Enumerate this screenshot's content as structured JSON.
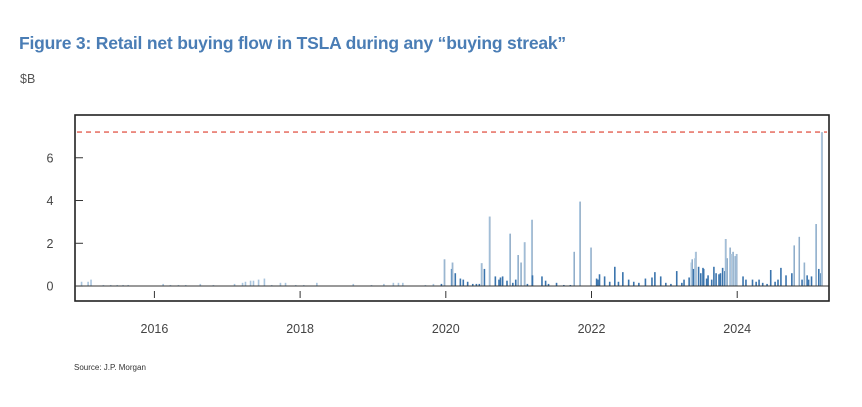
{
  "title": "Figure 3: Retail net buying flow in TSLA during any “buying streak”",
  "source": "Source: J.P. Morgan",
  "colors": {
    "title": "#4a7db5",
    "bar_light": "#a9c5de",
    "bar_dark": "#3a74ad",
    "reference_line": "#e8776b",
    "frame": "#222222"
  },
  "chart_data": {
    "type": "bar",
    "title": "Figure 3: Retail net buying flow in TSLA during any “buying streak”",
    "xlabel": "",
    "ylabel": "$B",
    "x_units": "year (decimal)",
    "xlim": [
      2014.91,
      2025.26
    ],
    "ylim": [
      -0.7,
      8.0
    ],
    "yticks": [
      0,
      2,
      4,
      6
    ],
    "ytick_labels": [
      "0",
      "2",
      "4",
      "6"
    ],
    "xticks": [
      2016,
      2018,
      2020,
      2022,
      2024
    ],
    "xtick_labels": [
      "2016",
      "2018",
      "2020",
      "2022",
      "2024"
    ],
    "grid": false,
    "legend": "none",
    "reference_line": {
      "y": 7.2,
      "style": "dashed",
      "label": ""
    },
    "x": [
      2015.0,
      2015.09,
      2015.13,
      2015.3,
      2015.4,
      2015.49,
      2015.57,
      2015.64,
      2016.12,
      2016.22,
      2016.33,
      2016.43,
      2016.63,
      2016.81,
      2017.1,
      2017.21,
      2017.25,
      2017.32,
      2017.36,
      2017.43,
      2017.51,
      2017.61,
      2017.73,
      2017.8,
      2017.94,
      2018.05,
      2018.23,
      2018.73,
      2018.98,
      2019.15,
      2019.28,
      2019.35,
      2019.41,
      2019.72,
      2019.83,
      2019.94,
      2019.98,
      2020.08,
      2020.09,
      2020.13,
      2020.2,
      2020.24,
      2020.3,
      2020.37,
      2020.42,
      2020.46,
      2020.49,
      2020.53,
      2020.6,
      2020.68,
      2020.73,
      2020.75,
      2020.78,
      2020.84,
      2020.88,
      2020.92,
      2020.96,
      2020.99,
      2021.03,
      2021.08,
      2021.12,
      2021.18,
      2021.19,
      2021.32,
      2021.37,
      2021.41,
      2021.52,
      2021.62,
      2021.71,
      2021.76,
      2021.84,
      2021.99,
      2022.07,
      2022.09,
      2022.11,
      2022.18,
      2022.25,
      2022.32,
      2022.37,
      2022.43,
      2022.51,
      2022.58,
      2022.65,
      2022.74,
      2022.83,
      2022.87,
      2022.95,
      2023.02,
      2023.09,
      2023.17,
      2023.24,
      2023.27,
      2023.34,
      2023.37,
      2023.38,
      2023.4,
      2023.42,
      2023.43,
      2023.47,
      2023.5,
      2023.53,
      2023.54,
      2023.58,
      2023.6,
      2023.65,
      2023.68,
      2023.71,
      2023.75,
      2023.77,
      2023.8,
      2023.83,
      2023.84,
      2023.86,
      2023.9,
      2023.91,
      2023.94,
      2023.97,
      2023.99,
      2024.08,
      2024.12,
      2024.21,
      2024.26,
      2024.3,
      2024.35,
      2024.41,
      2024.46,
      2024.52,
      2024.56,
      2024.6,
      2024.67,
      2024.75,
      2024.78,
      2024.85,
      2024.89,
      2024.92,
      2024.96,
      2024.98,
      2025.02,
      2025.08,
      2025.12,
      2025.15,
      2025.16
    ],
    "series": [
      {
        "name": "Retail net buying flow",
        "values": [
          0.2,
          0.2,
          0.3,
          0.05,
          0.05,
          0.05,
          0.05,
          0.05,
          0.1,
          0.05,
          0.05,
          0.05,
          0.1,
          0.05,
          0.1,
          0.15,
          0.2,
          0.25,
          0.25,
          0.3,
          0.35,
          0.05,
          0.15,
          0.15,
          0.05,
          0.05,
          0.15,
          0.1,
          0.05,
          0.1,
          0.15,
          0.15,
          0.15,
          0.05,
          0.1,
          0.1,
          1.25,
          0.8,
          1.1,
          0.6,
          0.35,
          0.3,
          0.2,
          0.1,
          0.1,
          0.1,
          1.07,
          0.8,
          3.25,
          0.45,
          0.3,
          0.4,
          0.45,
          0.25,
          2.45,
          0.15,
          0.3,
          1.45,
          1.1,
          2.05,
          0.1,
          3.1,
          0.5,
          0.45,
          0.25,
          0.1,
          0.15,
          0.05,
          0.05,
          1.6,
          3.95,
          1.8,
          0.35,
          0.3,
          0.55,
          0.45,
          0.2,
          0.9,
          0.2,
          0.65,
          0.3,
          0.2,
          0.15,
          0.35,
          0.4,
          0.65,
          0.45,
          0.15,
          0.1,
          0.7,
          0.15,
          0.3,
          0.4,
          1.1,
          1.25,
          0.8,
          1.3,
          1.6,
          0.9,
          0.6,
          0.85,
          0.8,
          0.35,
          0.5,
          0.3,
          0.9,
          0.6,
          0.55,
          0.6,
          0.85,
          0.7,
          2.2,
          1.3,
          1.8,
          1.5,
          1.6,
          1.4,
          1.5,
          0.45,
          0.3,
          0.3,
          0.2,
          0.3,
          0.15,
          0.1,
          0.75,
          0.2,
          0.3,
          0.85,
          0.5,
          0.6,
          1.9,
          2.3,
          0.3,
          1.1,
          0.5,
          0.3,
          0.45,
          2.9,
          0.8,
          0.6,
          7.2
        ]
      }
    ]
  }
}
